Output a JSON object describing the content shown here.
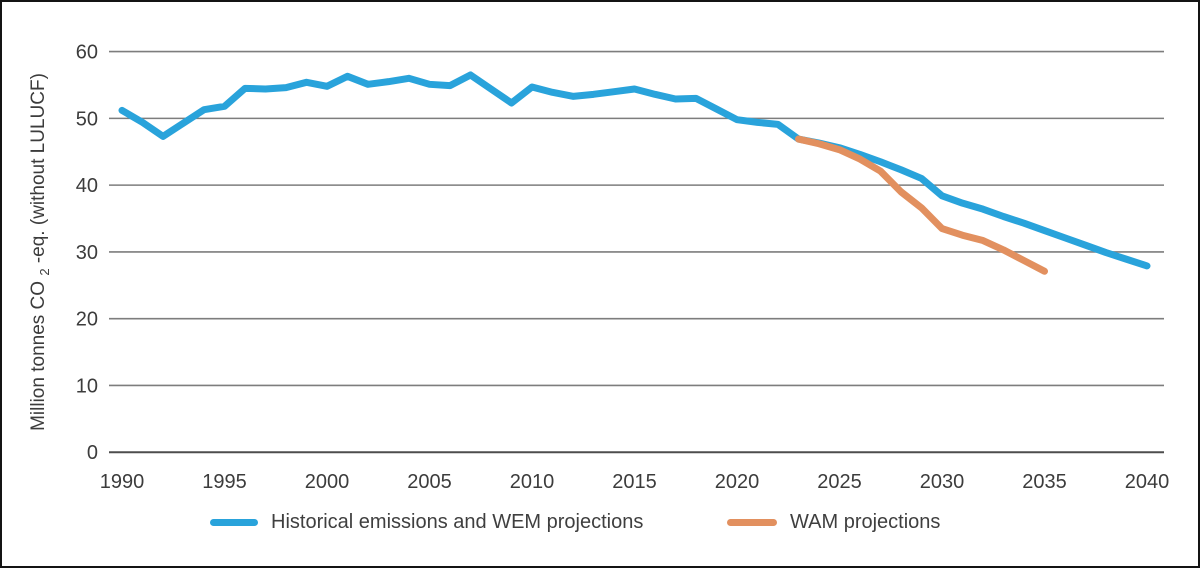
{
  "chart_data": {
    "type": "line",
    "title": "",
    "ylabel": {
      "pre": "Million tonnes CO",
      "sub": "2",
      "post": "-eq. (without LULUCF)"
    },
    "x_axis": {
      "min": 1990,
      "max": 2040,
      "ticks": [
        1990,
        1995,
        2000,
        2005,
        2010,
        2015,
        2020,
        2025,
        2030,
        2035,
        2040
      ]
    },
    "y_axis": {
      "min": 0,
      "max": 60,
      "ticks": [
        0,
        10,
        20,
        30,
        40,
        50,
        60
      ]
    },
    "grid": "horizontal",
    "legend_position": "bottom",
    "series": [
      {
        "name": "Historical emissions and WEM projections",
        "color": "#29A3DB",
        "start_year": 1990,
        "values": [
          51.2,
          49.4,
          47.3,
          49.3,
          51.3,
          51.8,
          54.5,
          54.4,
          54.6,
          55.4,
          54.8,
          56.3,
          55.1,
          55.5,
          56.0,
          55.1,
          54.9,
          56.5,
          54.4,
          52.3,
          54.7,
          53.9,
          53.3,
          53.6,
          54.0,
          54.4,
          53.6,
          52.9,
          53.0,
          51.4,
          49.8,
          49.4,
          49.1,
          46.9,
          46.3,
          45.6,
          44.6,
          43.5,
          42.3,
          41.0,
          38.4,
          37.3,
          36.4,
          35.3,
          34.3,
          33.2,
          32.1,
          31.0,
          29.9,
          28.9,
          27.9
        ]
      },
      {
        "name": "WAM projections",
        "color": "#E2905F",
        "start_year": 2023,
        "values": [
          46.9,
          46.2,
          45.3,
          43.9,
          42.1,
          39.0,
          36.6,
          33.5,
          32.5,
          31.7,
          30.3,
          28.7,
          27.1
        ]
      }
    ]
  },
  "colors": {
    "grid": "#7d7d7d",
    "zero_line": "#4d4d4d",
    "text": "#3c3c3c",
    "frame_border": "#141414"
  }
}
